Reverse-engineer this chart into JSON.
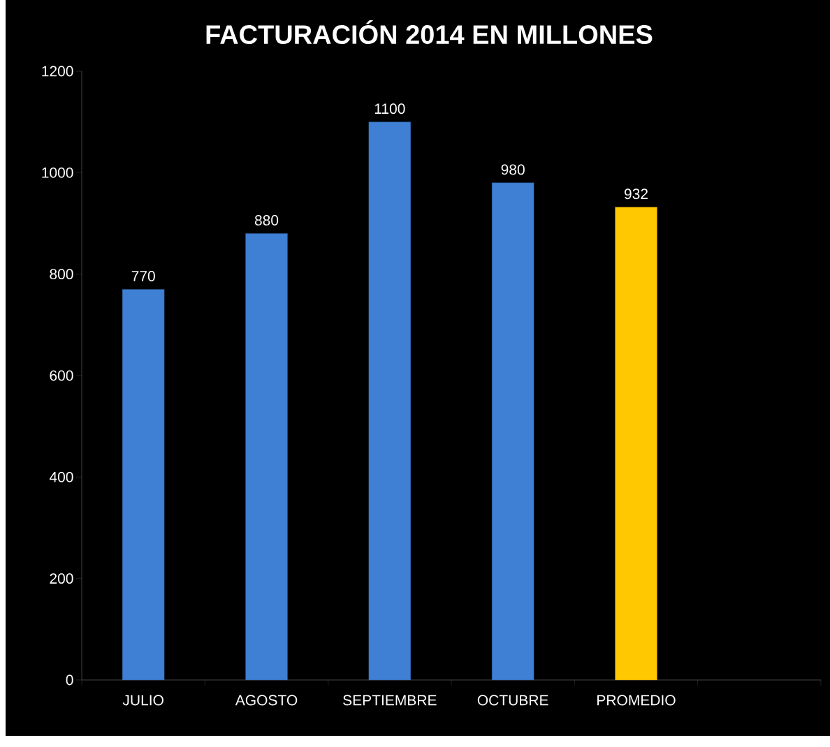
{
  "chart_data": {
    "type": "bar",
    "title": "FACTURACIÓN 2014 EN MILLONES",
    "categories": [
      "JULIO",
      "AGOSTO",
      "SEPTIEMBRE",
      "OCTUBRE",
      "PROMEDIO",
      null
    ],
    "values": [
      770,
      880,
      1100,
      980,
      932,
      null
    ],
    "colors": [
      "#3f7fd4",
      "#3f7fd4",
      "#3f7fd4",
      "#3f7fd4",
      "#ffc800",
      null
    ],
    "ylim": [
      0,
      1200
    ],
    "yticks": [
      0,
      200,
      400,
      600,
      800,
      1000,
      1200
    ],
    "data_labels": true
  }
}
